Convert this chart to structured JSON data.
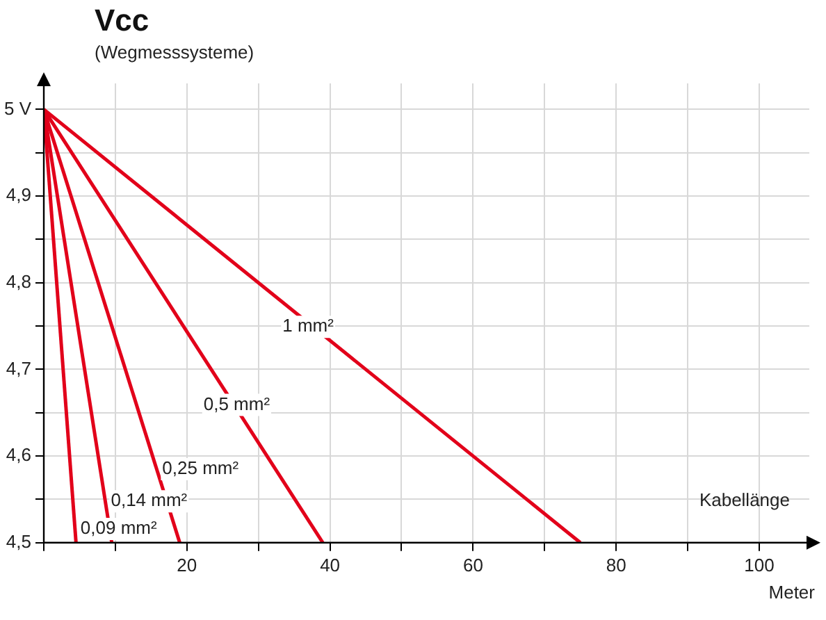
{
  "chart_data": {
    "type": "line",
    "title": "Vcc",
    "subtitle": "(Wegmesssysteme)",
    "xlabel": "Meter",
    "annotations": [
      "Kabellänge"
    ],
    "series": [
      {
        "name": "1 mm²",
        "color": "#e2001a",
        "x": [
          0,
          75
        ],
        "values": [
          5,
          4.5
        ]
      },
      {
        "name": "0,5 mm²",
        "color": "#e2001a",
        "x": [
          0,
          39
        ],
        "values": [
          5,
          4.5
        ]
      },
      {
        "name": "0,25 mm²",
        "color": "#e2001a",
        "x": [
          0,
          19
        ],
        "values": [
          5,
          4.5
        ]
      },
      {
        "name": "0,14 mm²",
        "color": "#e2001a",
        "x": [
          0,
          9.5
        ],
        "values": [
          5,
          4.5
        ]
      },
      {
        "name": "0,09 mm²",
        "color": "#e2001a",
        "x": [
          0,
          4.5
        ],
        "values": [
          5,
          4.5
        ]
      }
    ],
    "xlim": [
      0,
      107
    ],
    "ylim": [
      4.5,
      5.03
    ],
    "xticks": [
      {
        "value": 0,
        "label": null
      },
      {
        "value": 10,
        "label": null
      },
      20,
      {
        "value": 30,
        "label": null
      },
      40,
      {
        "value": 50,
        "label": null
      },
      60,
      {
        "value": 70,
        "label": null
      },
      80,
      {
        "value": 90,
        "label": null
      },
      100
    ],
    "yticks": [
      {
        "value": 4.5,
        "label": "4,5"
      },
      {
        "value": 4.55,
        "label": null
      },
      {
        "value": 4.6,
        "label": "4,6"
      },
      {
        "value": 4.65,
        "label": null
      },
      {
        "value": 4.7,
        "label": "4,7"
      },
      {
        "value": 4.75,
        "label": null
      },
      {
        "value": 4.8,
        "label": "4,8"
      },
      {
        "value": 4.85,
        "label": null
      },
      {
        "value": 4.9,
        "label": "4,9"
      },
      {
        "value": 4.95,
        "label": null
      },
      {
        "value": 5,
        "label": "5 V"
      }
    ],
    "grid": true,
    "legend": false,
    "marker": "none",
    "line_style": "solid"
  }
}
